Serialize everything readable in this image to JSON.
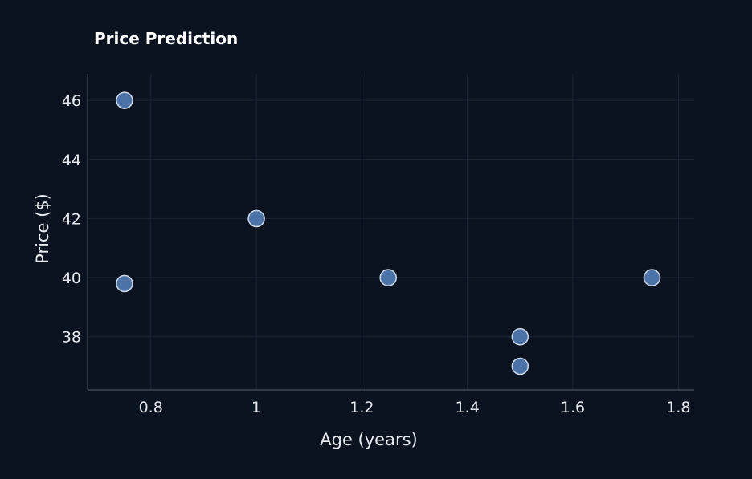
{
  "chart_data": {
    "type": "scatter",
    "title": "Price Prediction",
    "xlabel": "Age (years)",
    "ylabel": "Price ($)",
    "xlim": [
      0.68,
      1.83
    ],
    "ylim": [
      36.2,
      46.9
    ],
    "xticks": [
      0.8,
      1,
      1.2,
      1.4,
      1.6,
      1.8
    ],
    "xtick_labels": [
      "0.8",
      "1",
      "1.2",
      "1.4",
      "1.6",
      "1.8"
    ],
    "yticks": [
      38,
      40,
      42,
      44,
      46
    ],
    "ytick_labels": [
      "38",
      "40",
      "42",
      "44",
      "46"
    ],
    "grid": true,
    "series": [
      {
        "x": [
          0.75,
          0.75,
          1.0,
          1.25,
          1.5,
          1.5,
          1.75
        ],
        "y": [
          46,
          39.8,
          42,
          40,
          38,
          37,
          40
        ]
      }
    ],
    "colors": {
      "background": "#0b1320",
      "marker_fill": "#4b73a8",
      "marker_edge": "#c8d3e3",
      "grid": "#1c2636",
      "axis": "#46505e",
      "text": "#e6e9ee"
    }
  }
}
